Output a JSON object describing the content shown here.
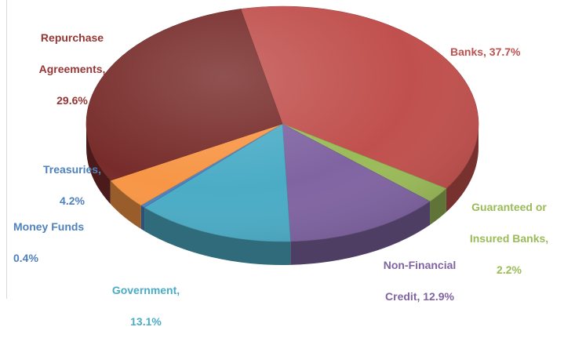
{
  "chart_data": {
    "type": "pie",
    "style": "3d",
    "title": "",
    "slices": [
      {
        "name": "Banks",
        "value": 37.7,
        "label_line1": "Banks, 37.7%",
        "label_line2": "",
        "color": "#c0504d",
        "label_color": "#c0504d"
      },
      {
        "name": "Guaranteed or Insured Banks",
        "value": 2.2,
        "label_line1": "Guaranteed or",
        "label_line2": "Insured Banks,",
        "label_line3": "2.2%",
        "color": "#9bbb59",
        "label_color": "#9bbb59"
      },
      {
        "name": "Non-Financial Credit",
        "value": 12.9,
        "label_line1": "Non-Financial",
        "label_line2": "Credit, 12.9%",
        "color": "#8064a2",
        "label_color": "#8064a2"
      },
      {
        "name": "Government",
        "value": 13.1,
        "label_line1": "Government,",
        "label_line2": "13.1%",
        "color": "#4bacc6",
        "label_color": "#4bacc6"
      },
      {
        "name": "Money Funds",
        "value": 0.4,
        "label_line1": "Money Funds",
        "label_line2": "0.4%",
        "color": "#4f81bd",
        "label_color": "#4f81bd"
      },
      {
        "name": "Treasuries",
        "value": 4.2,
        "label_line1": "Treasuries,",
        "label_line2": "4.2%",
        "color": "#f79646",
        "label_color": "#4f81bd"
      },
      {
        "name": "Repurchase Agreements",
        "value": 29.6,
        "label_line1": "Repurchase",
        "label_line2": "Agreements,",
        "label_line3": "29.6%",
        "color": "#772c2a",
        "label_color": "#943634"
      }
    ]
  }
}
